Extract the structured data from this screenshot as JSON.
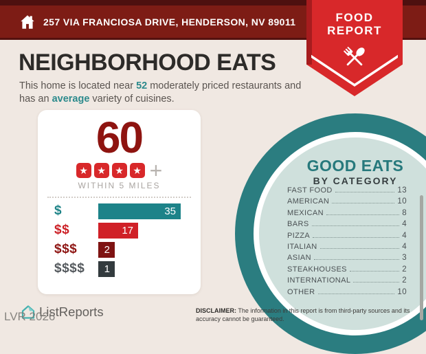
{
  "header": {
    "address": "257 VIA FRANCIOSA DRIVE, HENDERSON, NV 89011"
  },
  "badge": {
    "line1": "FOOD",
    "line2": "REPORT"
  },
  "page": {
    "title": "NEIGHBORHOOD EATS",
    "subtitle": {
      "part1": "This home is located near ",
      "count": "52",
      "part2a": " moderately priced restaurants and",
      "part2b": "has an ",
      "highlight": "average",
      "part3": " variety of cuisines."
    }
  },
  "score_card": {
    "score": "60",
    "stars": 4,
    "plus_label": "+",
    "radius_label": "WITHIN 5 MILES",
    "chart_data": {
      "type": "bar",
      "categories": [
        "$",
        "$$",
        "$$$",
        "$$$$"
      ],
      "values": [
        35,
        17,
        2,
        1
      ],
      "bar_colors": [
        "#1d8389",
        "#d02027",
        "#7e1312",
        "#333b3e"
      ],
      "label_colors": [
        "#1f8488",
        "#cc2127",
        "#8e1513",
        "#555a5e"
      ],
      "xlabel": "",
      "ylabel": "",
      "legend": false,
      "grid": false
    }
  },
  "good_eats": {
    "title": "GOOD EATS",
    "subtitle": "BY CATEGORY",
    "items": [
      {
        "label": "FAST FOOD",
        "value": "13"
      },
      {
        "label": "AMERICAN",
        "value": "10"
      },
      {
        "label": "MEXICAN",
        "value": "8"
      },
      {
        "label": "BARS",
        "value": "4"
      },
      {
        "label": "PIZZA",
        "value": "4"
      },
      {
        "label": "ITALIAN",
        "value": "4"
      },
      {
        "label": "ASIAN",
        "value": "3"
      },
      {
        "label": "STEAKHOUSES",
        "value": "2"
      },
      {
        "label": "INTERNATIONAL",
        "value": "2"
      },
      {
        "label": "OTHER",
        "value": "10"
      }
    ]
  },
  "footer": {
    "brand": "ListReports",
    "watermark": "LVR 2026",
    "disclaimer_label": "DISCLAIMER:",
    "disclaimer_text": " The information in this report is from third-party sources and its accuracy cannot be guaranteed."
  },
  "colors": {
    "header_bar": "#7d1c15",
    "header_strip": "#4e100f",
    "ribbon_red": "#d8282a",
    "background": "#f0e8e2",
    "accent_teal": "#2c8a8c",
    "score_red": "#8e1410",
    "circle_teal": "#2b7d80",
    "circle_interior": "#cfe0dc"
  }
}
